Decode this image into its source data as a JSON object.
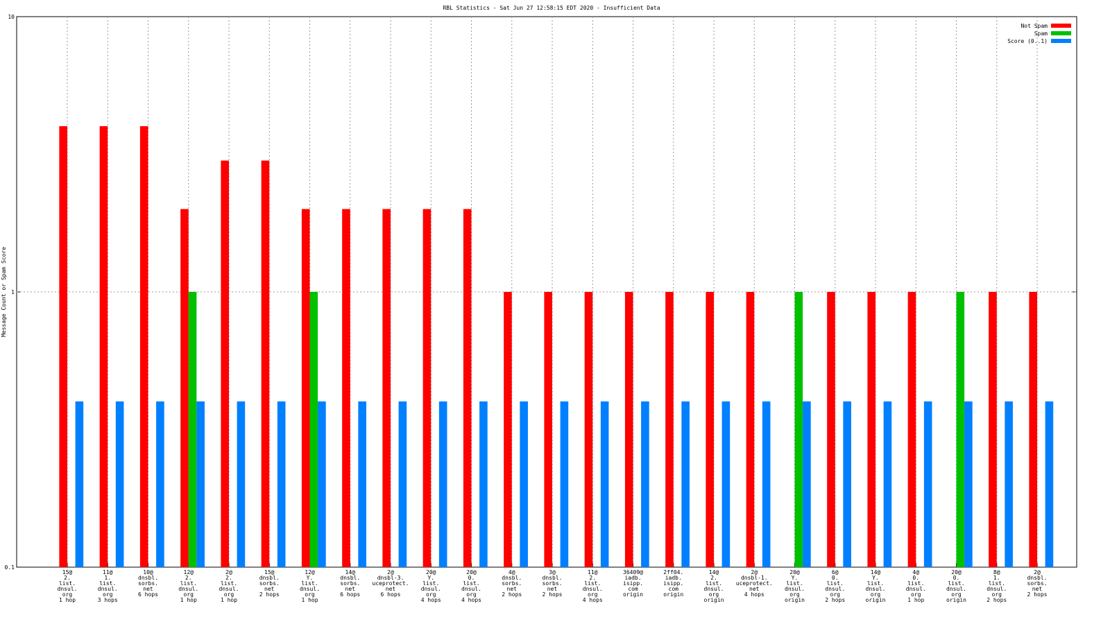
{
  "chart_data": {
    "type": "bar",
    "title": "RBL Statistics - Sat Jun 27 12:58:15 EDT 2020 - Insufficient Data",
    "y_label": "Message Count or Spam Score",
    "y_scale": "log",
    "grid": true,
    "legend_position": "top-right",
    "ylim": [
      0.1,
      10
    ],
    "yticks": [
      0.1,
      1,
      10
    ],
    "categories": [
      "15@\n2.\nlist.\ndnsul.\norg\n1 hop",
      "11@\n1.\nlist.\ndnsul.\norg\n3 hops",
      "10@\ndnsbl.\nsorbs.\nnet\n6 hops",
      "12@\n2.\nlist.\ndnsul.\norg\n1 hop",
      "2@\n2.\nlist.\ndnsul.\norg\n1 hop",
      "15@\ndnsbl.\nsorbs.\nnet\n2 hops",
      "12@\nY.\nlist.\ndnsul.\norg\n1 hop",
      "14@\ndnsbl.\nsorbs.\nnet\n6 hops",
      "2@\ndnsbl-3.\nuceprotect.\nnet\n6 hops",
      "20@\nY.\nlist.\ndnsul.\norg\n4 hops",
      "20@\n0.\nlist.\ndnsul.\norg\n4 hops",
      "4@\ndnsbl.\nsorbs.\nnet\n2 hops",
      "3@\ndnsbl.\nsorbs.\nnet\n2 hops",
      "11@\n2.\nlist.\ndnsul.\norg\n4 hops",
      "36409@\niadb.\nisipp.\ncom\norigin",
      "2ff04.\niadb.\nisipp.\ncom\norigin",
      "14@\n2.\nlist.\ndnsul.\norg\norigin",
      "2@\ndnsbl-1.\nuceprotect.\nnet\n4 hops",
      "20@\nY.\nlist.\ndnsul.\norg\norigin",
      "6@\n0.\nlist.\ndnsul.\norg\n2 hops",
      "14@\nY.\nlist.\ndnsul.\norg\norigin",
      "4@\n0.\nlist.\ndnsul.\norg\n1 hop",
      "20@\n0.\nlist.\ndnsul.\norg\norigin",
      "8@\n1.\nlist.\ndnsul.\norg\n2 hops",
      "2@\ndnsbl.\nsorbs.\nnet\n2 hops"
    ],
    "series": [
      {
        "name": "Not Spam",
        "color": "#ff0000",
        "values": [
          4,
          4,
          4,
          2,
          3,
          3,
          2,
          2,
          2,
          2,
          2,
          1,
          1,
          1,
          1,
          1,
          1,
          1,
          null,
          1,
          1,
          1,
          null,
          1,
          1
        ]
      },
      {
        "name": "Spam",
        "color": "#00c000",
        "values": [
          null,
          null,
          null,
          1,
          null,
          null,
          1,
          null,
          null,
          null,
          null,
          null,
          null,
          null,
          null,
          null,
          null,
          null,
          1,
          null,
          null,
          null,
          1,
          null,
          null
        ]
      },
      {
        "name": "Score (0..1)",
        "color": "#0080ff",
        "values": [
          0.4,
          0.4,
          0.4,
          0.4,
          0.4,
          0.4,
          0.4,
          0.4,
          0.4,
          0.4,
          0.4,
          0.4,
          0.4,
          0.4,
          0.4,
          0.4,
          0.4,
          0.4,
          0.4,
          0.4,
          0.4,
          0.4,
          0.4,
          0.4,
          0.4
        ]
      }
    ]
  }
}
